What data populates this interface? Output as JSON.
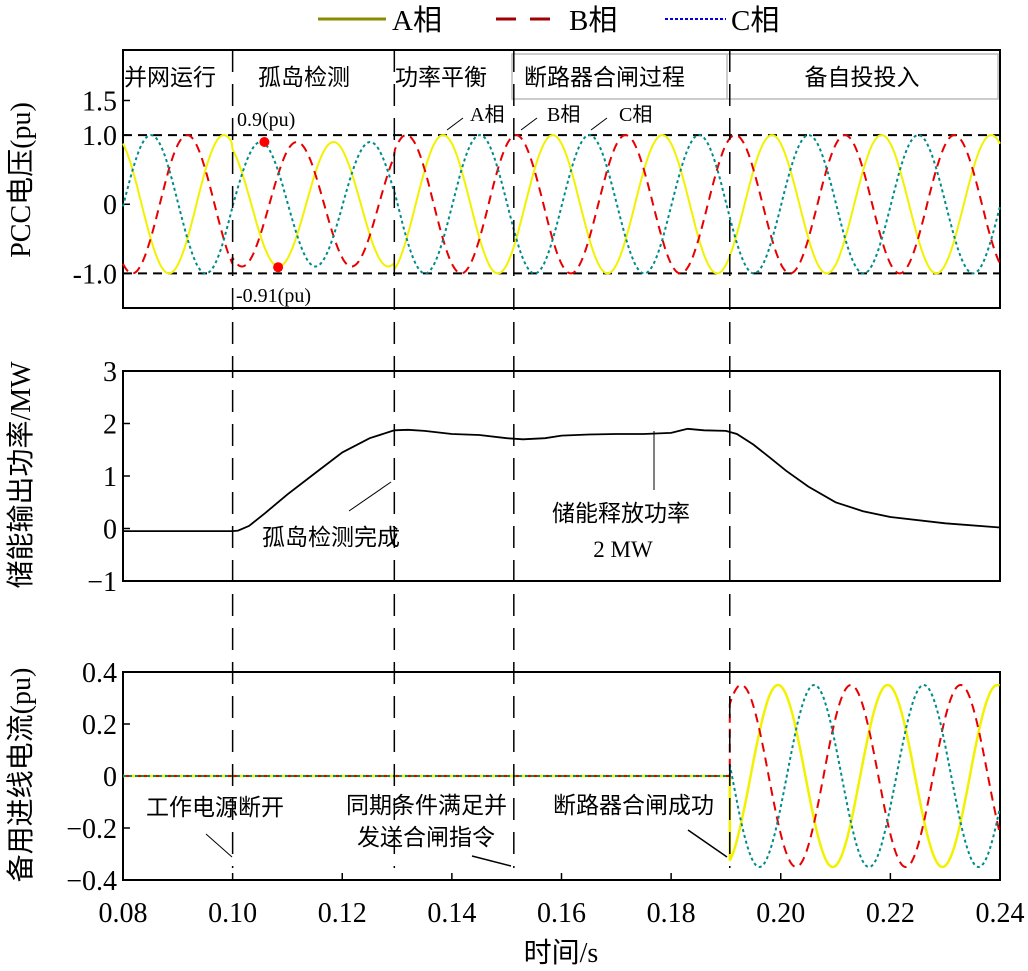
{
  "legend": {
    "items": [
      {
        "label": "A相",
        "color": "#8b8b00",
        "dash": "solid"
      },
      {
        "label": "B相",
        "color": "#a00000",
        "dash": "dashed"
      },
      {
        "label": "C相",
        "color": "#0000dd",
        "dash": "dotted"
      }
    ]
  },
  "colors": {
    "A": "#f2f200",
    "B": "#e80000",
    "C": "#008b8b",
    "power": "#000000"
  },
  "xaxis": {
    "label": "时间/s",
    "ticks": [
      "0.08",
      "0.10",
      "0.12",
      "0.14",
      "0.16",
      "0.18",
      "0.20",
      "0.22",
      "0.24"
    ],
    "range": [
      0.08,
      0.24
    ]
  },
  "events": [
    0.1,
    0.1295,
    0.1513,
    0.1907
  ],
  "chart_data": [
    {
      "type": "line",
      "ylabel": "PCC电压(pu)",
      "ylim": [
        -1.5,
        2.23
      ],
      "yticks": [
        {
          "v": 1.5,
          "label": "1.5"
        },
        {
          "v": 1.0,
          "label": "1.0"
        },
        {
          "v": 0,
          "label": "0"
        },
        {
          "v": -1.0,
          "label": "-1.0"
        }
      ],
      "reference_lines": [
        1.0,
        -1.0
      ],
      "stages": [
        "并网运行",
        "孤岛检测",
        "功率平衡",
        "断路器合闸过程",
        "备自投投入"
      ],
      "frequency_hz": 50,
      "series": [
        {
          "name": "A相",
          "peak_time": 0.0984,
          "amplitude": 1.0
        },
        {
          "name": "B相",
          "peak_time": 0.1117,
          "amplitude": 1.0
        },
        {
          "name": "C相",
          "peak_time": 0.1051,
          "amplitude": 1.0
        }
      ],
      "islanding_amplitude": 0.9,
      "annotations": {
        "max": "0.9(pu)",
        "min": "-0.91(pu)",
        "phase_a": "A相",
        "phase_b": "B相",
        "phase_c": "C相"
      },
      "marked_points": [
        {
          "t": 0.1058,
          "v": 0.9
        },
        {
          "t": 0.1083,
          "v": -0.91
        }
      ]
    },
    {
      "type": "line",
      "ylabel": "储能输出功率/MW",
      "ylim": [
        -1,
        3
      ],
      "yticks": [
        {
          "v": 3,
          "label": "3"
        },
        {
          "v": 2,
          "label": "2"
        },
        {
          "v": 1,
          "label": "1"
        },
        {
          "v": 0,
          "label": "0"
        },
        {
          "v": -1,
          "label": "−1"
        }
      ],
      "x": [
        0.08,
        0.1,
        0.101,
        0.103,
        0.106,
        0.11,
        0.115,
        0.12,
        0.125,
        0.1295,
        0.132,
        0.135,
        0.14,
        0.145,
        0.15,
        0.153,
        0.157,
        0.16,
        0.165,
        0.17,
        0.175,
        0.18,
        0.183,
        0.186,
        0.19,
        0.192,
        0.195,
        0.198,
        0.201,
        0.205,
        0.21,
        0.215,
        0.22,
        0.23,
        0.24
      ],
      "y": [
        -0.05,
        -0.05,
        -0.04,
        0.05,
        0.3,
        0.65,
        1.05,
        1.45,
        1.72,
        1.87,
        1.88,
        1.86,
        1.8,
        1.78,
        1.72,
        1.7,
        1.72,
        1.77,
        1.79,
        1.8,
        1.8,
        1.82,
        1.9,
        1.87,
        1.86,
        1.8,
        1.6,
        1.35,
        1.1,
        0.8,
        0.5,
        0.33,
        0.22,
        0.1,
        0.02
      ],
      "annotations": {
        "detect_done": "孤岛检测完成",
        "release_line1": "储能释放功率",
        "release_line2": "2 MW"
      }
    },
    {
      "type": "line",
      "ylabel": "备用进线电流(pu)",
      "ylim": [
        -0.4,
        0.4
      ],
      "yticks": [
        {
          "v": 0.4,
          "label": "0.4"
        },
        {
          "v": 0.2,
          "label": "0.2"
        },
        {
          "v": 0,
          "label": "0"
        },
        {
          "v": -0.2,
          "label": "−0.2"
        },
        {
          "v": -0.4,
          "label": "−0.4"
        }
      ],
      "frequency_hz": 50,
      "start_time": 0.1907,
      "amplitude": 0.35,
      "series": [
        {
          "name": "A相",
          "peak_time": 0.1995
        },
        {
          "name": "B相",
          "peak_time": 0.2128
        },
        {
          "name": "C相",
          "peak_time": 0.2061
        }
      ],
      "annotations": {
        "source_off": "工作电源断开",
        "sync_line1": "同期条件满足并",
        "sync_line2": "发送合闸指令",
        "breaker_ok": "断路器合闸成功"
      }
    }
  ]
}
